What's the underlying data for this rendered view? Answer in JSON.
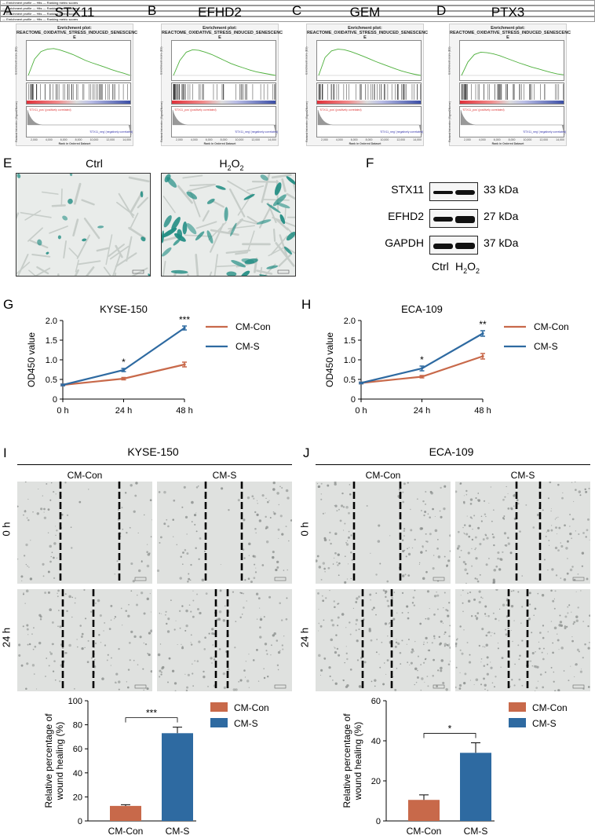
{
  "panels": {
    "A": {
      "letter": "A",
      "gene": "STX11",
      "plot_title": "Enrichment plot:\nREACTOME_OXIDATIVE_STRESS_INDUCED_SENESCENC\nE"
    },
    "B": {
      "letter": "B",
      "gene": "EFHD2",
      "plot_title": "Enrichment plot:\nREACTOME_OXIDATIVE_STRESS_INDUCED_SENESCENC\nE"
    },
    "C": {
      "letter": "C",
      "gene": "GEM",
      "plot_title": "Enrichment plot:\nREACTOME_OXIDATIVE_STRESS_INDUCED_SENESCENC\nE"
    },
    "D": {
      "letter": "D",
      "gene": "PTX3",
      "plot_title": "Enrichment plot:\nREACTOME_OXIDATIVE_STRESS_INDUCED_SENESCENC\nE"
    }
  },
  "gsea_common": {
    "es_ylabel": "Enrichment score (ES)",
    "rank_ylabel": "Ranked list metric (Signal2Noise)",
    "xlabel": "Rank in Ordered Dataset",
    "legend": [
      "Enrichment profile",
      "Hits",
      "Ranking metric scores"
    ],
    "pos_label": "'STX11_pos' (positively correlated)",
    "neg_label": "'STX11_neg' (negatively correlated)",
    "ticks": [
      "2,000",
      "4,000",
      "6,000",
      "8,000",
      "10,000",
      "12,000",
      "14,000"
    ],
    "line_color": "#4caf3a"
  },
  "panel_E": {
    "letter": "E",
    "left_label": "Ctrl",
    "right_label": "H",
    "right_sub": "2",
    "right_label_tail": "O",
    "right_sub2": "2"
  },
  "panel_F": {
    "letter": "F",
    "rows": [
      {
        "protein": "STX11",
        "kda": "33 kDa"
      },
      {
        "protein": "EFHD2",
        "kda": "27 kDa"
      },
      {
        "protein": "GAPDH",
        "kda": "37 kDa"
      }
    ],
    "lanes": {
      "ctrl": "Ctrl",
      "h": "H",
      "sub": "2",
      "o": "O",
      "sub2": "2"
    }
  },
  "panel_G": {
    "letter": "G"
  },
  "panel_H": {
    "letter": "H"
  },
  "panel_I": {
    "letter": "I",
    "title": "KYSE-150",
    "col1": "CM-Con",
    "col2": "CM-S",
    "row1": "0 h",
    "row2": "24 h"
  },
  "panel_J": {
    "letter": "J",
    "title": "ECA-109",
    "col1": "CM-Con",
    "col2": "CM-S",
    "row1": "0 h",
    "row2": "24 h"
  },
  "colors": {
    "con": "#c8694a",
    "s": "#2e6aa1"
  },
  "chart_data": [
    {
      "id": "G",
      "type": "line",
      "title": "KYSE-150",
      "xlabel": "",
      "ylabel": "OD450 value",
      "categories": [
        "0 h",
        "24 h",
        "48 h"
      ],
      "ylim": [
        0,
        2.0
      ],
      "yticks": [
        "0",
        "0.5",
        "1.0",
        "1.5",
        "2.0"
      ],
      "series": [
        {
          "name": "CM-Con",
          "values": [
            0.36,
            0.52,
            0.88
          ],
          "errors": [
            0.02,
            0.03,
            0.06
          ],
          "color": "#c8694a"
        },
        {
          "name": "CM-S",
          "values": [
            0.36,
            0.74,
            1.81
          ],
          "errors": [
            0.02,
            0.04,
            0.05
          ],
          "color": "#2e6aa1"
        }
      ],
      "annotations": [
        {
          "at": "24 h",
          "text": "*"
        },
        {
          "at": "48 h",
          "text": "***"
        }
      ],
      "legend": "right"
    },
    {
      "id": "H",
      "type": "line",
      "title": "ECA-109",
      "xlabel": "",
      "ylabel": "OD450 value",
      "categories": [
        "0 h",
        "24 h",
        "48 h"
      ],
      "ylim": [
        0,
        2.0
      ],
      "yticks": [
        "0",
        "0.5",
        "1.0",
        "1.5",
        "2.0"
      ],
      "series": [
        {
          "name": "CM-Con",
          "values": [
            0.41,
            0.57,
            1.09
          ],
          "errors": [
            0.02,
            0.03,
            0.07
          ],
          "color": "#c8694a"
        },
        {
          "name": "CM-S",
          "values": [
            0.41,
            0.78,
            1.67
          ],
          "errors": [
            0.02,
            0.06,
            0.07
          ],
          "color": "#2e6aa1"
        }
      ],
      "annotations": [
        {
          "at": "24 h",
          "text": "*"
        },
        {
          "at": "48 h",
          "text": "**"
        }
      ],
      "legend": "right"
    },
    {
      "id": "I",
      "type": "bar",
      "xlabel": "",
      "ylabel": "Relative percentage of\nwound healing (%)",
      "categories": [
        "CM-Con",
        "CM-S"
      ],
      "ylim": [
        0,
        100
      ],
      "yticks": [
        "0",
        "20",
        "40",
        "60",
        "80",
        "100"
      ],
      "values": [
        12.5,
        73
      ],
      "errors": [
        1,
        5
      ],
      "colors": [
        "#c8694a",
        "#2e6aa1"
      ],
      "significance": "***",
      "legend": [
        "CM-Con",
        "CM-S"
      ]
    },
    {
      "id": "J",
      "type": "bar",
      "xlabel": "",
      "ylabel": "Relative percentage of\nwound healing (%)",
      "categories": [
        "CM-Con",
        "CM-S"
      ],
      "ylim": [
        0,
        60
      ],
      "yticks": [
        "0",
        "20",
        "40",
        "60"
      ],
      "values": [
        10.5,
        34
      ],
      "errors": [
        2.5,
        5
      ],
      "colors": [
        "#c8694a",
        "#2e6aa1"
      ],
      "significance": "*",
      "legend": [
        "CM-Con",
        "CM-S"
      ]
    }
  ]
}
